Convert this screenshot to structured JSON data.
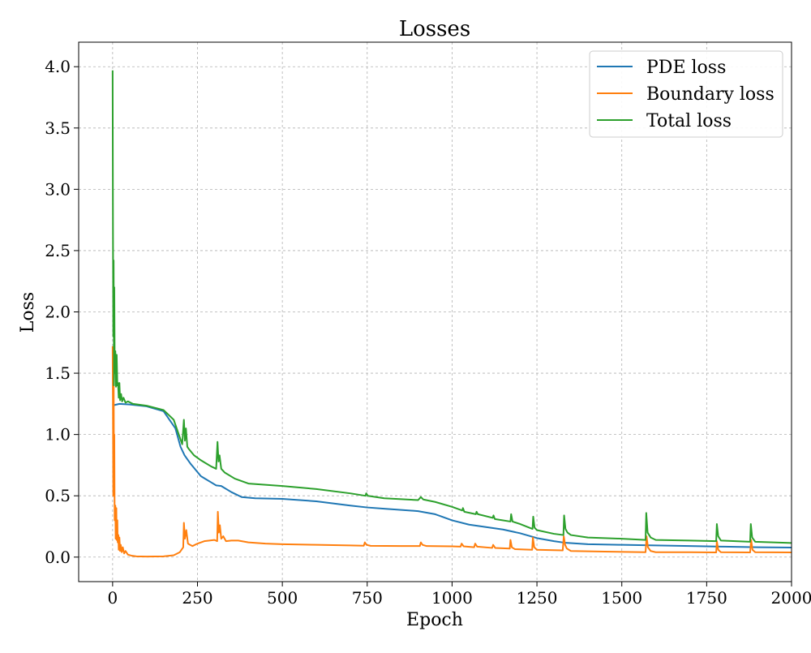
{
  "chart_data": {
    "type": "line",
    "title": "Losses",
    "xlabel": "Epoch",
    "ylabel": "Loss",
    "xlim": [
      -100,
      2000
    ],
    "ylim": [
      -0.2,
      4.2
    ],
    "xticks": [
      0,
      250,
      500,
      750,
      1000,
      1250,
      1500,
      1750,
      2000
    ],
    "xtick_labels": [
      "0",
      "250",
      "500",
      "750",
      "1000",
      "1250",
      "1500",
      "1750",
      "2000"
    ],
    "yticks": [
      0.0,
      0.5,
      1.0,
      1.5,
      2.0,
      2.5,
      3.0,
      3.5,
      4.0
    ],
    "ytick_labels": [
      "0.0",
      "0.5",
      "1.0",
      "1.5",
      "2.0",
      "2.5",
      "3.0",
      "3.5",
      "4.0"
    ],
    "grid": true,
    "legend_position": "top-right",
    "series": [
      {
        "name": "PDE loss",
        "color": "#1f77b4",
        "points": [
          [
            0,
            1.25
          ],
          [
            5,
            1.24
          ],
          [
            20,
            1.25
          ],
          [
            50,
            1.245
          ],
          [
            100,
            1.23
          ],
          [
            150,
            1.19
          ],
          [
            185,
            1.05
          ],
          [
            200,
            0.9
          ],
          [
            212,
            0.83
          ],
          [
            230,
            0.76
          ],
          [
            260,
            0.66
          ],
          [
            290,
            0.61
          ],
          [
            305,
            0.585
          ],
          [
            320,
            0.58
          ],
          [
            350,
            0.53
          ],
          [
            380,
            0.49
          ],
          [
            420,
            0.48
          ],
          [
            500,
            0.475
          ],
          [
            600,
            0.455
          ],
          [
            700,
            0.42
          ],
          [
            750,
            0.405
          ],
          [
            800,
            0.395
          ],
          [
            900,
            0.375
          ],
          [
            950,
            0.35
          ],
          [
            1000,
            0.3
          ],
          [
            1050,
            0.265
          ],
          [
            1100,
            0.245
          ],
          [
            1150,
            0.225
          ],
          [
            1200,
            0.195
          ],
          [
            1250,
            0.155
          ],
          [
            1300,
            0.13
          ],
          [
            1330,
            0.118
          ],
          [
            1400,
            0.105
          ],
          [
            1500,
            0.1
          ],
          [
            1600,
            0.095
          ],
          [
            1700,
            0.09
          ],
          [
            1800,
            0.085
          ],
          [
            1900,
            0.08
          ],
          [
            2000,
            0.078
          ]
        ]
      },
      {
        "name": "Boundary loss",
        "color": "#ff7f0e",
        "points": [
          [
            0,
            1.72
          ],
          [
            1,
            1.2
          ],
          [
            2,
            0.5
          ],
          [
            3,
            1.6
          ],
          [
            4,
            0.6
          ],
          [
            5,
            1.0
          ],
          [
            6,
            0.3
          ],
          [
            8,
            0.42
          ],
          [
            9,
            0.15
          ],
          [
            11,
            0.4
          ],
          [
            12,
            0.14
          ],
          [
            14,
            0.3
          ],
          [
            15,
            0.12
          ],
          [
            17,
            0.18
          ],
          [
            18,
            0.06
          ],
          [
            20,
            0.16
          ],
          [
            22,
            0.05
          ],
          [
            24,
            0.1
          ],
          [
            27,
            0.04
          ],
          [
            30,
            0.08
          ],
          [
            34,
            0.03
          ],
          [
            38,
            0.05
          ],
          [
            45,
            0.02
          ],
          [
            55,
            0.012
          ],
          [
            70,
            0.006
          ],
          [
            100,
            0.004
          ],
          [
            150,
            0.006
          ],
          [
            180,
            0.015
          ],
          [
            198,
            0.04
          ],
          [
            208,
            0.08
          ],
          [
            210,
            0.28
          ],
          [
            213,
            0.15
          ],
          [
            217,
            0.22
          ],
          [
            222,
            0.11
          ],
          [
            228,
            0.1
          ],
          [
            235,
            0.09
          ],
          [
            250,
            0.11
          ],
          [
            270,
            0.13
          ],
          [
            300,
            0.14
          ],
          [
            308,
            0.13
          ],
          [
            310,
            0.37
          ],
          [
            313,
            0.2
          ],
          [
            316,
            0.26
          ],
          [
            320,
            0.15
          ],
          [
            326,
            0.17
          ],
          [
            334,
            0.13
          ],
          [
            350,
            0.135
          ],
          [
            370,
            0.135
          ],
          [
            400,
            0.12
          ],
          [
            450,
            0.11
          ],
          [
            500,
            0.105
          ],
          [
            600,
            0.1
          ],
          [
            700,
            0.095
          ],
          [
            740,
            0.093
          ],
          [
            743,
            0.12
          ],
          [
            748,
            0.1
          ],
          [
            760,
            0.092
          ],
          [
            850,
            0.09
          ],
          [
            905,
            0.09
          ],
          [
            908,
            0.12
          ],
          [
            913,
            0.1
          ],
          [
            925,
            0.09
          ],
          [
            1000,
            0.088
          ],
          [
            1025,
            0.085
          ],
          [
            1028,
            0.11
          ],
          [
            1034,
            0.088
          ],
          [
            1065,
            0.08
          ],
          [
            1068,
            0.11
          ],
          [
            1074,
            0.085
          ],
          [
            1118,
            0.075
          ],
          [
            1121,
            0.1
          ],
          [
            1127,
            0.075
          ],
          [
            1170,
            0.07
          ],
          [
            1172,
            0.14
          ],
          [
            1176,
            0.08
          ],
          [
            1185,
            0.065
          ],
          [
            1236,
            0.06
          ],
          [
            1238,
            0.16
          ],
          [
            1242,
            0.08
          ],
          [
            1250,
            0.06
          ],
          [
            1326,
            0.055
          ],
          [
            1329,
            0.17
          ],
          [
            1333,
            0.1
          ],
          [
            1338,
            0.07
          ],
          [
            1350,
            0.05
          ],
          [
            1450,
            0.045
          ],
          [
            1570,
            0.04
          ],
          [
            1573,
            0.17
          ],
          [
            1577,
            0.08
          ],
          [
            1585,
            0.05
          ],
          [
            1600,
            0.04
          ],
          [
            1700,
            0.04
          ],
          [
            1778,
            0.038
          ],
          [
            1780,
            0.13
          ],
          [
            1784,
            0.06
          ],
          [
            1792,
            0.04
          ],
          [
            1878,
            0.038
          ],
          [
            1881,
            0.14
          ],
          [
            1885,
            0.06
          ],
          [
            1893,
            0.04
          ],
          [
            2000,
            0.038
          ]
        ]
      },
      {
        "name": "Total loss",
        "color": "#2ca02c",
        "points": [
          [
            0,
            3.97
          ],
          [
            1,
            2.7
          ],
          [
            2,
            1.8
          ],
          [
            3,
            2.42
          ],
          [
            4,
            1.4
          ],
          [
            5,
            2.2
          ],
          [
            6,
            1.65
          ],
          [
            7,
            1.5
          ],
          [
            8,
            1.68
          ],
          [
            10,
            1.39
          ],
          [
            12,
            1.65
          ],
          [
            14,
            1.4
          ],
          [
            16,
            1.42
          ],
          [
            18,
            1.3
          ],
          [
            20,
            1.42
          ],
          [
            22,
            1.28
          ],
          [
            25,
            1.33
          ],
          [
            28,
            1.27
          ],
          [
            32,
            1.3
          ],
          [
            38,
            1.26
          ],
          [
            45,
            1.27
          ],
          [
            60,
            1.25
          ],
          [
            100,
            1.235
          ],
          [
            150,
            1.2
          ],
          [
            180,
            1.12
          ],
          [
            195,
            1.0
          ],
          [
            205,
            0.92
          ],
          [
            210,
            1.12
          ],
          [
            213,
            0.95
          ],
          [
            216,
            1.05
          ],
          [
            220,
            0.9
          ],
          [
            225,
            0.88
          ],
          [
            240,
            0.83
          ],
          [
            260,
            0.79
          ],
          [
            290,
            0.74
          ],
          [
            305,
            0.72
          ],
          [
            309,
            0.94
          ],
          [
            312,
            0.78
          ],
          [
            315,
            0.83
          ],
          [
            320,
            0.72
          ],
          [
            330,
            0.69
          ],
          [
            360,
            0.64
          ],
          [
            400,
            0.6
          ],
          [
            450,
            0.59
          ],
          [
            500,
            0.58
          ],
          [
            600,
            0.555
          ],
          [
            700,
            0.52
          ],
          [
            745,
            0.5
          ],
          [
            747,
            0.52
          ],
          [
            752,
            0.5
          ],
          [
            800,
            0.48
          ],
          [
            900,
            0.465
          ],
          [
            908,
            0.49
          ],
          [
            915,
            0.47
          ],
          [
            950,
            0.45
          ],
          [
            1000,
            0.41
          ],
          [
            1030,
            0.38
          ],
          [
            1032,
            0.4
          ],
          [
            1036,
            0.37
          ],
          [
            1070,
            0.35
          ],
          [
            1072,
            0.37
          ],
          [
            1076,
            0.35
          ],
          [
            1120,
            0.32
          ],
          [
            1122,
            0.34
          ],
          [
            1126,
            0.31
          ],
          [
            1172,
            0.29
          ],
          [
            1174,
            0.35
          ],
          [
            1178,
            0.29
          ],
          [
            1200,
            0.27
          ],
          [
            1237,
            0.23
          ],
          [
            1239,
            0.33
          ],
          [
            1243,
            0.24
          ],
          [
            1250,
            0.22
          ],
          [
            1300,
            0.19
          ],
          [
            1328,
            0.18
          ],
          [
            1330,
            0.34
          ],
          [
            1334,
            0.23
          ],
          [
            1340,
            0.2
          ],
          [
            1350,
            0.18
          ],
          [
            1400,
            0.16
          ],
          [
            1500,
            0.15
          ],
          [
            1570,
            0.14
          ],
          [
            1572,
            0.36
          ],
          [
            1576,
            0.2
          ],
          [
            1585,
            0.16
          ],
          [
            1600,
            0.14
          ],
          [
            1700,
            0.135
          ],
          [
            1778,
            0.13
          ],
          [
            1780,
            0.27
          ],
          [
            1784,
            0.17
          ],
          [
            1792,
            0.135
          ],
          [
            1878,
            0.125
          ],
          [
            1880,
            0.27
          ],
          [
            1884,
            0.16
          ],
          [
            1893,
            0.125
          ],
          [
            2000,
            0.115
          ]
        ]
      }
    ]
  }
}
